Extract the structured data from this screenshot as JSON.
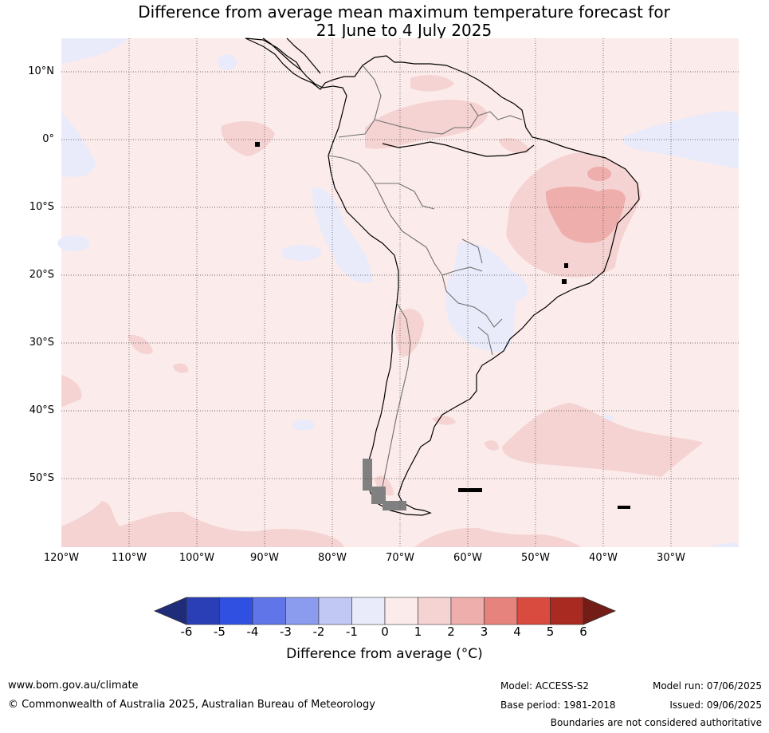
{
  "title": {
    "line1": "Difference from average mean maximum temperature forecast for",
    "line2": "21 June to 4 July 2025"
  },
  "map": {
    "lat_labels": [
      "10°N",
      "0°",
      "10°S",
      "20°S",
      "30°S",
      "40°S",
      "50°S"
    ],
    "lon_labels": [
      "120°W",
      "110°W",
      "100°W",
      "90°W",
      "80°W",
      "70°W",
      "60°W",
      "50°W",
      "40°W",
      "30°W"
    ],
    "colors": {
      "ocean_neutral": "#fbebea",
      "light_blue": "#e9ebfb",
      "light_red": "#f5d3d2",
      "medium_red": "#eeaeab",
      "coastline": "#000000",
      "border": "#707070"
    }
  },
  "colorbar": {
    "tick_labels": [
      "-6",
      "-5",
      "-4",
      "-3",
      "-2",
      "-1",
      "0",
      "1",
      "2",
      "3",
      "4",
      "5",
      "6"
    ],
    "colors": [
      "#1f2c7a",
      "#2a3fb5",
      "#3050e2",
      "#5f75e8",
      "#8b9bee",
      "#c1c8f4",
      "#e9ebfb",
      "#fbebea",
      "#f5d3d2",
      "#eeaeab",
      "#e6837d",
      "#d94a3f",
      "#a82a20",
      "#741c16"
    ],
    "title": "Difference from average (°C)"
  },
  "footer": {
    "website": "www.bom.gov.au/climate",
    "copyright": "© Commonwealth of Australia 2025, Australian Bureau of Meteorology",
    "model": "Model: ACCESS-S2",
    "base_period": "Base period: 1981-2018",
    "model_run": "Model run: 07/06/2025",
    "issued": "Issued: 09/06/2025",
    "disclaimer": "Boundaries are not considered authoritative"
  }
}
